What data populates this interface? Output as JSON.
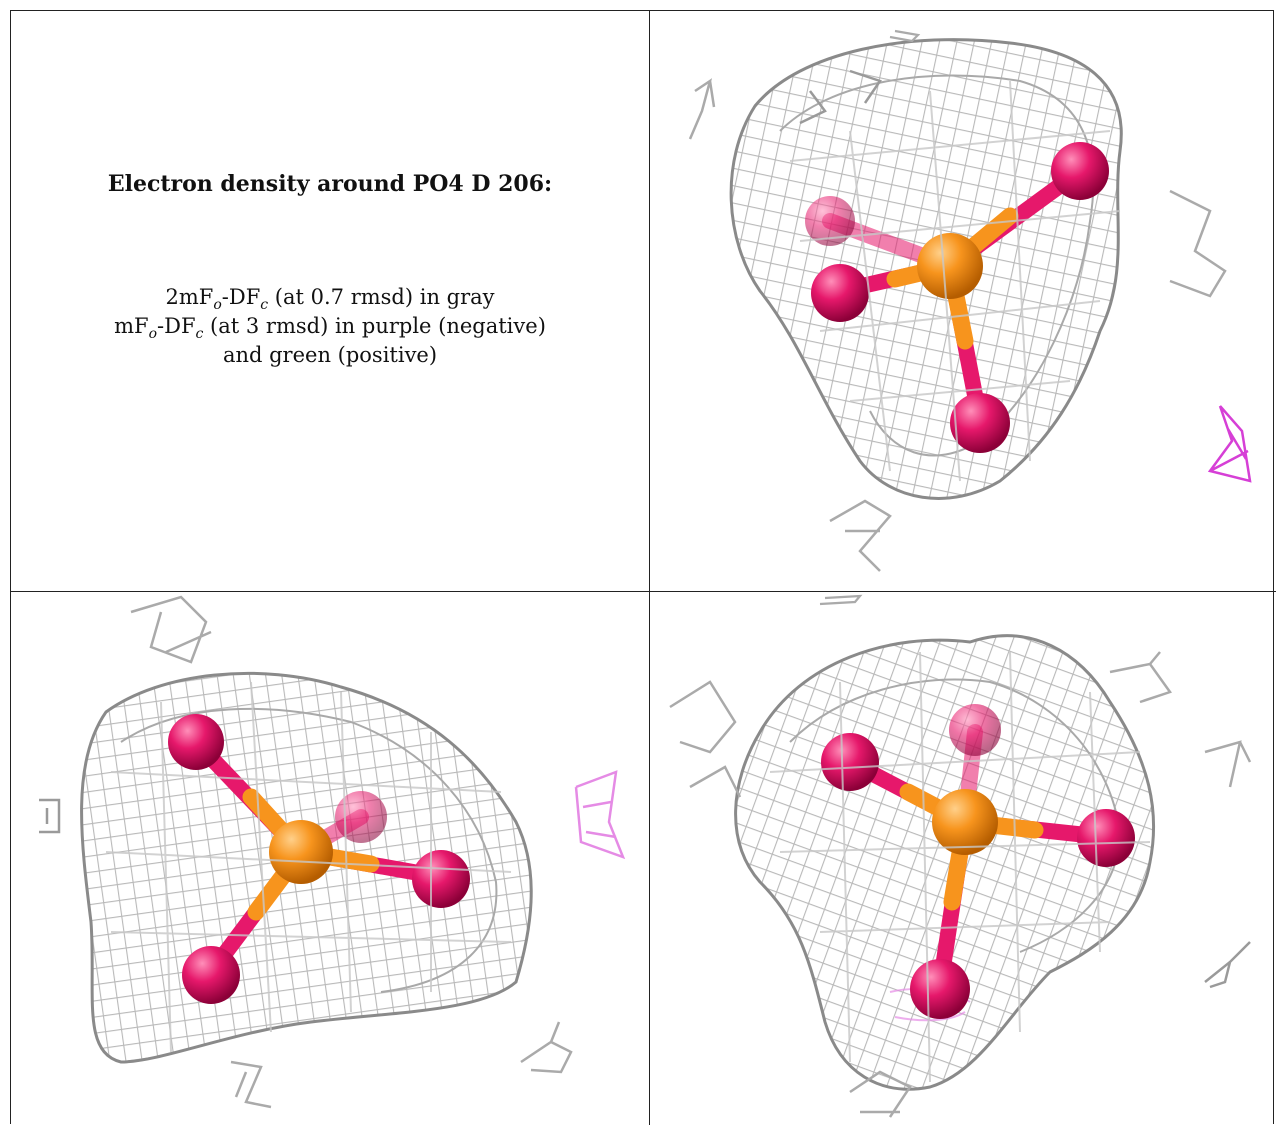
{
  "caption": {
    "title": "Electron density around PO4 D 206:",
    "line1": {
      "prefix": "2mF",
      "sub1": "o",
      "mid": "-DF",
      "sub2": "c",
      "suffix": " (at 0.7 rmsd) in gray"
    },
    "line2": {
      "prefix": "mF",
      "sub1": "o",
      "mid": "-DF",
      "sub2": "c",
      "suffix": " (at 3 rmsd) in purple (negative)"
    },
    "line3": "and green (positive)"
  },
  "colors": {
    "mesh_gray": "#b9b9b9",
    "mesh_dark": "#8a8a8a",
    "phosphorus": "#f7941d",
    "oxygen": "#e6186b",
    "negative_density": "#d63fd6",
    "negative_density_light": "#e58be5"
  },
  "views": [
    {
      "name": "view-top-right",
      "atoms": [
        "phosphorus",
        "oxygen",
        "oxygen",
        "oxygen",
        "oxygen"
      ]
    },
    {
      "name": "view-bottom-left",
      "atoms": [
        "phosphorus",
        "oxygen",
        "oxygen",
        "oxygen",
        "oxygen"
      ]
    },
    {
      "name": "view-bottom-right",
      "atoms": [
        "phosphorus",
        "oxygen",
        "oxygen",
        "oxygen",
        "oxygen"
      ]
    }
  ]
}
